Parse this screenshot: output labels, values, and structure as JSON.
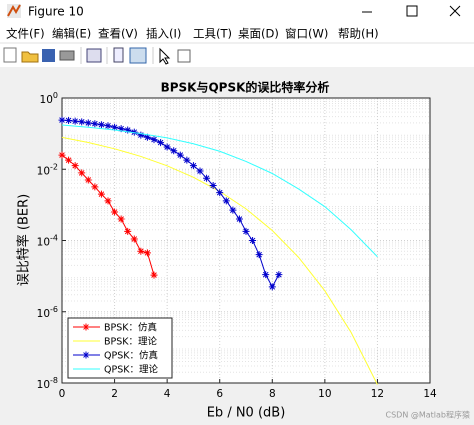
{
  "window": {
    "title": "Figure 10",
    "menu": [
      "文件(F)",
      "编辑(E)",
      "查看(V)",
      "插入(I)",
      "工具(T)",
      "桌面(D)",
      "窗口(W)",
      "帮助(H)"
    ]
  },
  "chart_data": {
    "type": "line",
    "title": "BPSK与QPSK的误比特率分析",
    "x_label": "Eb / N0 (dB)",
    "y_label": "误比特率 (BER)",
    "xlim": [
      0,
      14
    ],
    "xticks": [
      0,
      2,
      4,
      6,
      8,
      10,
      12,
      14
    ],
    "ylim": [
      1e-08,
      1
    ],
    "log_y": true,
    "yticks": [
      {
        "value": 1e-08,
        "label": "10^-8"
      },
      {
        "value": 1e-06,
        "label": "10^-6"
      },
      {
        "value": 0.0001,
        "label": "10^-4"
      },
      {
        "value": 0.01,
        "label": "10^-2"
      },
      {
        "value": 1,
        "label": "10^0"
      }
    ],
    "grid": true,
    "minor_grid": true,
    "legend": "lower left",
    "series": [
      {
        "name": "BPSK：仿真",
        "color": "#ff0000",
        "marker": "*",
        "x": [
          0,
          0.25,
          0.5,
          0.75,
          1,
          1.25,
          1.5,
          1.75,
          2,
          2.25,
          2.5,
          2.75,
          3,
          3.25,
          3.5
        ],
        "values": [
          0.025,
          0.018,
          0.0126,
          0.0079,
          0.005,
          0.0032,
          0.002,
          0.0013,
          0.00063,
          0.0004,
          0.00018,
          0.00011,
          5e-05,
          4.5e-05,
          1.07e-05
        ]
      },
      {
        "name": "BPSK：理论",
        "color": "#ffff33",
        "marker": null,
        "x": [
          0,
          1,
          2,
          3,
          4,
          5,
          6,
          7,
          8,
          9,
          10,
          11,
          12
        ],
        "values": [
          0.0786,
          0.0563,
          0.0375,
          0.0229,
          0.0125,
          0.00595,
          0.00239,
          0.000773,
          0.000191,
          3.36e-05,
          3.87e-06,
          2.61e-07,
          9e-09
        ]
      },
      {
        "name": "QPSK：仿真",
        "color": "#0000cc",
        "marker": "*",
        "x": [
          0,
          0.25,
          0.5,
          0.75,
          1,
          1.25,
          1.5,
          1.75,
          2,
          2.25,
          2.5,
          2.75,
          3,
          3.25,
          3.5,
          3.75,
          4,
          4.25,
          4.5,
          4.75,
          5,
          5.25,
          5.5,
          5.75,
          6,
          6.25,
          6.5,
          6.75,
          7,
          7.25,
          7.5,
          7.75,
          8,
          8.25
        ],
        "values": [
          0.24,
          0.234,
          0.224,
          0.214,
          0.2,
          0.19,
          0.178,
          0.166,
          0.151,
          0.138,
          0.126,
          0.11,
          0.091,
          0.079,
          0.068,
          0.056,
          0.042,
          0.033,
          0.025,
          0.018,
          0.0126,
          0.0089,
          0.0056,
          0.0035,
          0.0022,
          0.0013,
          0.00071,
          0.0004,
          0.00018,
          0.0001,
          4e-05,
          1.1e-05,
          5e-06,
          1.1e-05
        ]
      },
      {
        "name": "QPSK：理论",
        "color": "#33ffff",
        "marker": null,
        "x": [
          0,
          1,
          2,
          3,
          4,
          5,
          6,
          7,
          8,
          9,
          10,
          11,
          12
        ],
        "values": [
          0.174,
          0.151,
          0.126,
          0.1,
          0.076,
          0.052,
          0.032,
          0.0166,
          0.0076,
          0.0028,
          0.00089,
          0.0002,
          3.5e-05
        ]
      }
    ]
  },
  "watermark": "CSDN @Matlab程序猿"
}
